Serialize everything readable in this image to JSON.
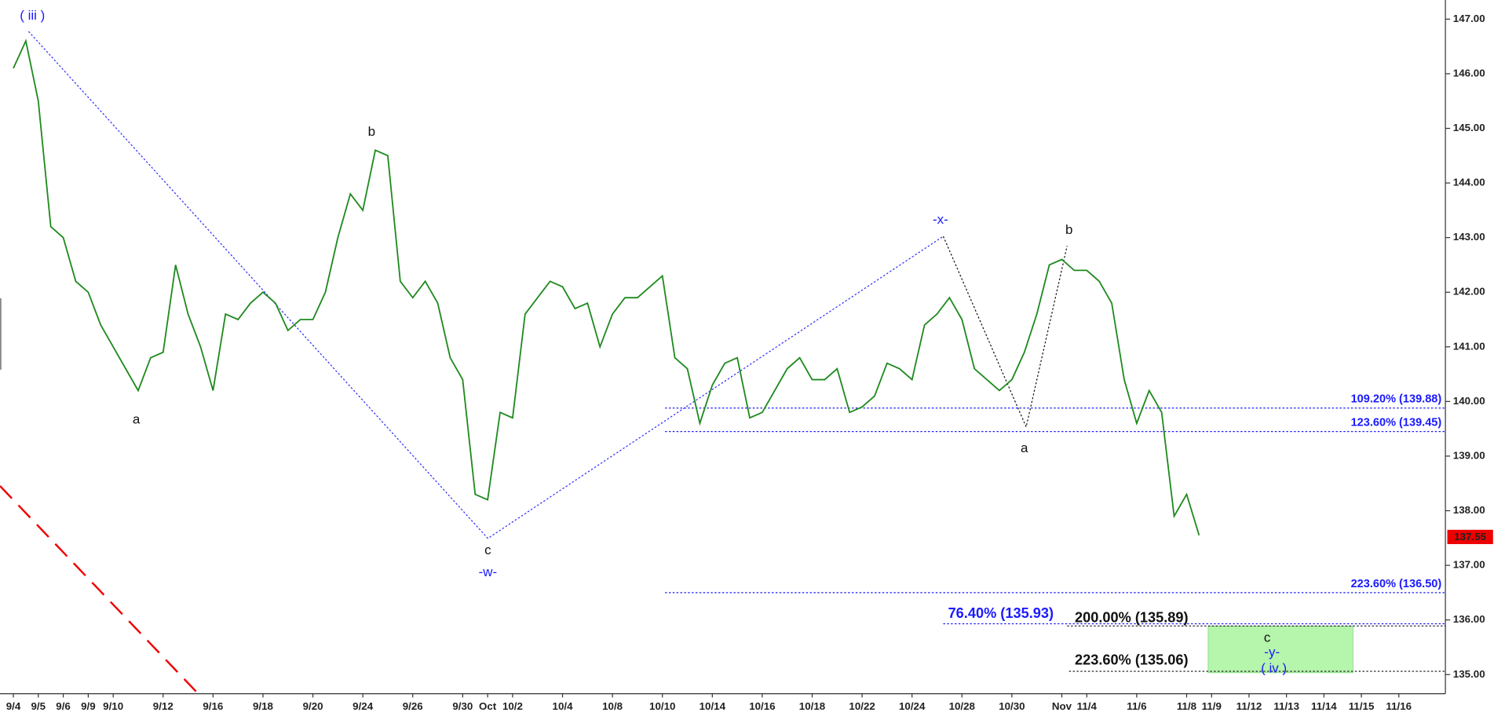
{
  "chart_data": {
    "type": "line",
    "categories": [
      "9/4",
      null,
      "9/5",
      null,
      "9/6",
      null,
      "9/9",
      null,
      "9/10",
      null,
      null,
      null,
      "9/12",
      null,
      null,
      null,
      "9/16",
      null,
      null,
      null,
      "9/18",
      null,
      null,
      null,
      "9/20",
      null,
      null,
      null,
      "9/24",
      null,
      null,
      null,
      "9/26",
      null,
      null,
      null,
      "9/30",
      null,
      "Oct",
      null,
      "10/2",
      null,
      null,
      null,
      "10/4",
      null,
      null,
      null,
      "10/8",
      null,
      null,
      null,
      "10/10",
      null,
      null,
      null,
      "10/14",
      null,
      null,
      null,
      "10/16",
      null,
      null,
      null,
      "10/18",
      null,
      null,
      null,
      "10/22",
      null,
      null,
      null,
      "10/24",
      null,
      null,
      null,
      "10/28",
      null,
      null,
      null,
      "10/30",
      null,
      null,
      null,
      "Nov",
      null,
      "11/4",
      null,
      null,
      null,
      "11/6",
      null,
      null,
      null,
      "11/8",
      null,
      "11/9",
      null,
      null,
      "11/12",
      null,
      null,
      "11/13",
      null,
      null,
      "11/14",
      null,
      null,
      "11/15",
      null,
      null,
      "11/16",
      null,
      null,
      null
    ],
    "series": [
      {
        "color": "#1f8a1f",
        "values": [
          146.1,
          146.6,
          145.5,
          143.2,
          143.0,
          142.2,
          142.0,
          141.4,
          141.0,
          140.6,
          140.2,
          140.8,
          140.9,
          142.5,
          141.6,
          141.0,
          140.2,
          141.6,
          141.5,
          141.8,
          142.0,
          141.8,
          141.3,
          141.5,
          141.5,
          142.0,
          143.0,
          143.8,
          143.5,
          144.6,
          144.5,
          142.2,
          141.9,
          142.2,
          141.8,
          140.8,
          140.4,
          138.3,
          138.2,
          139.8,
          139.7,
          141.6,
          141.9,
          142.2,
          142.1,
          141.7,
          141.8,
          141.0,
          141.6,
          141.9,
          141.9,
          142.1,
          142.3,
          140.8,
          140.6,
          139.6,
          140.3,
          140.7,
          140.8,
          139.7,
          139.8,
          140.2,
          140.6,
          140.8,
          140.4,
          140.4,
          140.6,
          139.8,
          139.9,
          140.1,
          140.7,
          140.6,
          140.4,
          141.4,
          141.6,
          141.9,
          141.5,
          140.6,
          140.4,
          140.2,
          140.4,
          140.9,
          141.6,
          142.5,
          142.6,
          142.4,
          142.4,
          142.2,
          141.8,
          140.4,
          139.6,
          140.2,
          139.8,
          137.9,
          138.3,
          137.55,
          null,
          null,
          null,
          null,
          null,
          null,
          null,
          null,
          null,
          null,
          null,
          null,
          null,
          null,
          null,
          null,
          null,
          null,
          null
        ]
      }
    ],
    "last_price": 137.55,
    "ylim": [
      134.65,
      147.35
    ],
    "yticks": [
      {
        "value": 135,
        "label": "135.00"
      },
      {
        "value": 136,
        "label": "136.00"
      },
      {
        "value": 137,
        "label": "137.00"
      },
      {
        "value": 138,
        "label": "138.00"
      },
      {
        "value": 139,
        "label": "139.00"
      },
      {
        "value": 140,
        "label": "140.00"
      },
      {
        "value": 141,
        "label": "141.00"
      },
      {
        "value": 142,
        "label": "142.00"
      },
      {
        "value": 143,
        "label": "143.00"
      },
      {
        "value": 144,
        "label": "144.00"
      },
      {
        "value": 145,
        "label": "145.00"
      },
      {
        "value": 146,
        "label": "146.00"
      },
      {
        "value": 147,
        "label": "147.00"
      }
    ],
    "fib_levels": [
      {
        "label": "109.20% (139.88)",
        "value": 139.88,
        "color": "#1a1aff"
      },
      {
        "label": "123.60% (139.45)",
        "value": 139.45,
        "color": "#1a1aff"
      },
      {
        "label": "223.60% (136.50)",
        "value": 136.5,
        "color": "#1a1aff"
      },
      {
        "label": "76.40% (135.93)",
        "value": 135.93,
        "color": "#1a1aff"
      },
      {
        "label": "200.00% (135.89)",
        "value": 135.89,
        "color": "#111111"
      },
      {
        "label": "223.60% (135.06)",
        "value": 135.06,
        "color": "#111111"
      }
    ],
    "annotations": [
      {
        "text": "( iii )",
        "color": "#1a1aff"
      },
      {
        "text": "a",
        "color": "#111111"
      },
      {
        "text": "b",
        "color": "#111111"
      },
      {
        "text": "c",
        "color": "#111111"
      },
      {
        "text": "-w-",
        "color": "#1a1aff"
      },
      {
        "text": "-x-",
        "color": "#1a1aff"
      },
      {
        "text": "a",
        "color": "#111111"
      },
      {
        "text": "b",
        "color": "#111111"
      },
      {
        "text": "c",
        "color": "#111111"
      },
      {
        "text": "-y-",
        "color": "#1a1aff"
      },
      {
        "text": "( iv )",
        "color": "#1a1aff"
      }
    ]
  }
}
